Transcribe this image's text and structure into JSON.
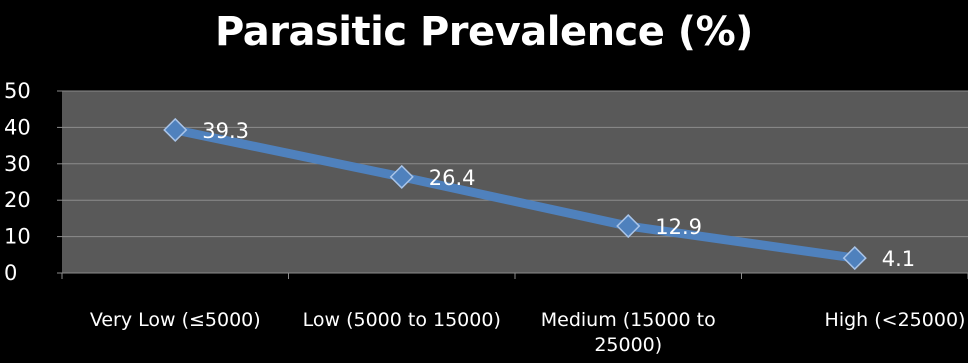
{
  "chart_data": {
    "type": "line",
    "title": "Parasitic Prevalence (%)",
    "xlabel": "",
    "ylabel": "",
    "categories": [
      "Very Low (≤5000)",
      "Low (5000 to 15000)",
      "Medium (15000 to 25000)",
      "High (<25000)"
    ],
    "category_lines": [
      [
        "Very Low (≤5000)"
      ],
      [
        "Low (5000 to 15000)"
      ],
      [
        "Medium (15000 to",
        "25000)"
      ],
      [
        "High (<25000)"
      ]
    ],
    "series": [
      {
        "values": [
          39.3,
          26.4,
          12.9,
          4.1
        ]
      }
    ],
    "ylim": [
      0,
      50
    ],
    "yticks": [
      0,
      10,
      20,
      30,
      40,
      50
    ],
    "grid": true,
    "legend": "none",
    "colors": {
      "background": "#000000",
      "plot_area": "#595959",
      "gridline": "#8c8c8c",
      "line": "#4f81bd",
      "marker": "#4f81bd",
      "text": "#ffffff"
    }
  }
}
